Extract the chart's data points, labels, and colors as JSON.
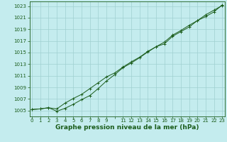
{
  "title": "Graphe pression niveau de la mer (hPa)",
  "bg_color": "#c4ecee",
  "grid_color": "#a0d0d0",
  "line_color": "#1a5c1a",
  "hours": [
    0,
    1,
    2,
    3,
    4,
    5,
    6,
    7,
    8,
    9,
    10,
    11,
    12,
    13,
    14,
    15,
    16,
    17,
    18,
    19,
    20,
    21,
    22,
    23
  ],
  "pressure_line1": [
    1005.2,
    1005.3,
    1005.5,
    1004.9,
    1005.4,
    1006.1,
    1006.9,
    1007.6,
    1008.8,
    1010.1,
    1011.2,
    1012.4,
    1013.2,
    1014.1,
    1015.1,
    1016.0,
    1016.5,
    1017.8,
    1018.6,
    1019.4,
    1020.5,
    1021.2,
    1022.0,
    1023.2
  ],
  "pressure_line2": [
    1005.2,
    1005.3,
    1005.5,
    1005.3,
    1006.3,
    1007.1,
    1007.8,
    1008.8,
    1009.8,
    1010.8,
    1011.5,
    1012.5,
    1013.4,
    1014.2,
    1015.2,
    1016.0,
    1016.8,
    1018.0,
    1018.8,
    1019.7,
    1020.5,
    1021.5,
    1022.3,
    1023.1
  ],
  "ylim": [
    1004.0,
    1023.8
  ],
  "yticks": [
    1005,
    1007,
    1009,
    1011,
    1013,
    1015,
    1017,
    1019,
    1021,
    1023
  ],
  "xtick_labels": [
    "0",
    "1",
    "2",
    "3",
    "4",
    "5",
    "6",
    "7",
    "8",
    "9",
    "",
    "11",
    "12",
    "13",
    "14",
    "15",
    "16",
    "17",
    "18",
    "19",
    "20",
    "21",
    "22",
    "23"
  ],
  "title_fontsize": 6.5,
  "tick_fontsize": 5.0,
  "marker_size": 2.5,
  "line_width": 0.7
}
